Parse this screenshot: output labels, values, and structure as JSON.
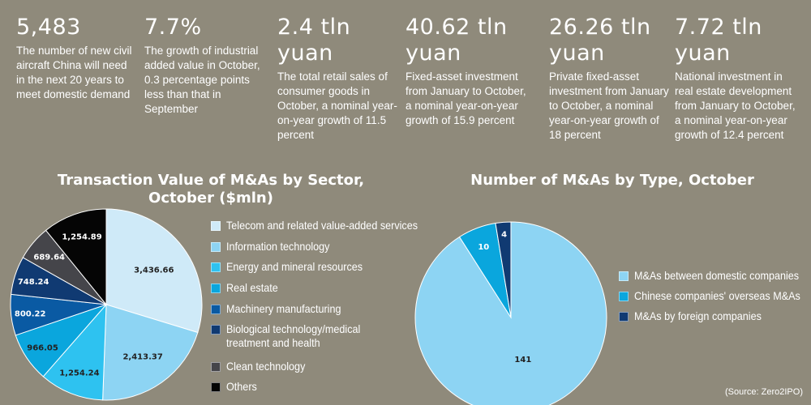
{
  "stats": [
    {
      "value": "5,483",
      "desc": "The number of new civil aircraft China will need in the next 20 years to meet domestic demand"
    },
    {
      "value": "7.7%",
      "desc": "The growth of industrial added value in October, 0.3 percentage points less than that in September"
    },
    {
      "value": "2.4 tln yuan",
      "desc": "The total retail sales of consumer goods in October, a nominal year-on-year growth of 11.5 percent"
    },
    {
      "value": "40.62 tln yuan",
      "desc": "Fixed-asset investment from January to October, a nominal year-on-year growth of 15.9 percent"
    },
    {
      "value": "26.26 tln yuan",
      "desc": "Private fixed-asset investment from January to October, a nominal year-on-year growth of 18 percent"
    },
    {
      "value": "7.72 tln yuan",
      "desc": "National investment in real estate development from January to October, a nominal year-on-year growth of 12.4 percent"
    }
  ],
  "chart_data": [
    {
      "type": "pie",
      "title": "Transaction Value of M&As by Sector, October ($mln)",
      "categories": [
        "Telecom and related value-added services",
        "Information technology",
        "Energy and mineral resources",
        "Real estate",
        "Machinery manufacturing",
        "Biological technology/medical treatment and health",
        "Clean technology",
        "Others"
      ],
      "values": [
        3436.66,
        2413.37,
        1254.24,
        966.05,
        800.22,
        748.24,
        689.64,
        1254.89
      ],
      "labels": [
        "3,436.66",
        "2,413.37",
        "1,254.24",
        "966.05",
        "800.22",
        "748.24",
        "689.64",
        "1,254.89"
      ],
      "colors": [
        "#cfeaf8",
        "#8dd4f3",
        "#2ec2f0",
        "#0aa6dd",
        "#0a5aa3",
        "#103a72",
        "#45454a",
        "#050505"
      ],
      "label_colors": [
        "#222222",
        "#222222",
        "#222222",
        "#222222",
        "#ffffff",
        "#ffffff",
        "#ffffff",
        "#ffffff"
      ],
      "legend": "right"
    },
    {
      "type": "pie",
      "title": "Number of M&As by Type, October",
      "categories": [
        "M&As between domestic companies",
        "Chinese companies' overseas M&As",
        "M&As by foreign companies"
      ],
      "values": [
        141,
        10,
        4
      ],
      "labels": [
        "141",
        "10",
        "4"
      ],
      "colors": [
        "#8dd4f3",
        "#0aa6dd",
        "#103a72"
      ],
      "label_colors": [
        "#222222",
        "#ffffff",
        "#ffffff"
      ],
      "legend": "right"
    }
  ],
  "source": "(Source: Zero2IPO)"
}
